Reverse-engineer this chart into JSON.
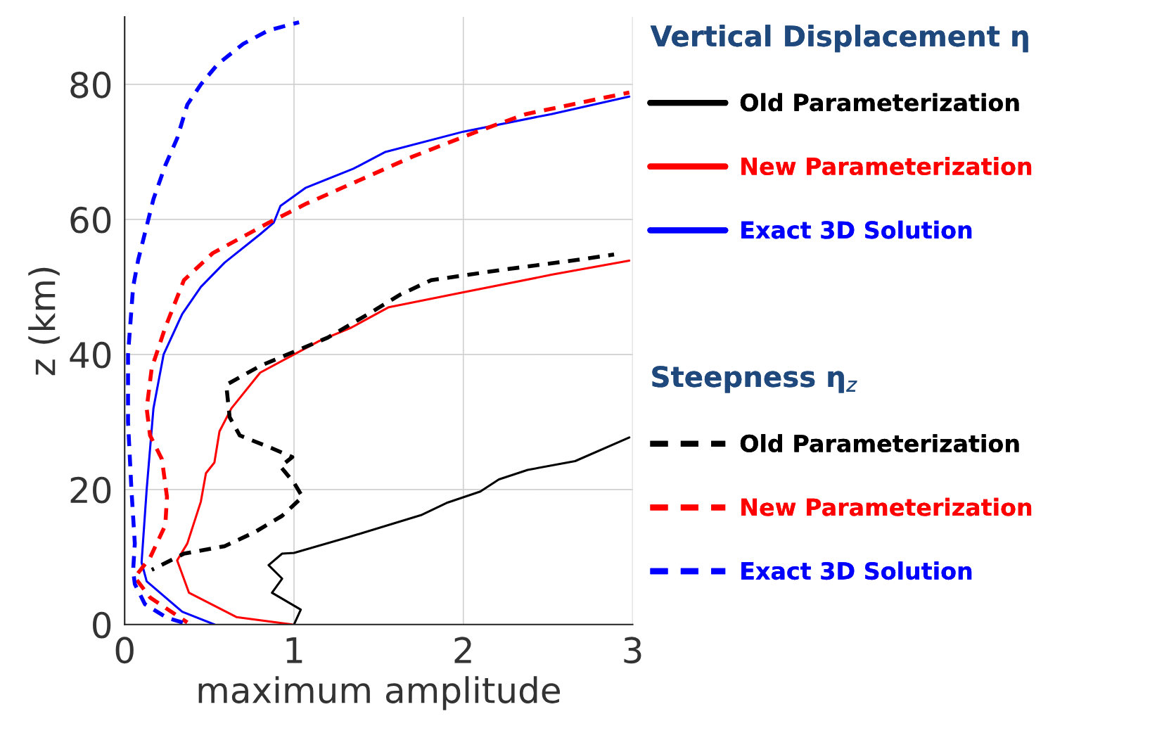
{
  "chart_data": {
    "type": "line",
    "xlabel": "maximum amplitude",
    "ylabel": "z (km)",
    "xlim": [
      0,
      3
    ],
    "ylim": [
      0,
      90
    ],
    "xticks": [
      0,
      1,
      2,
      3
    ],
    "yticks": [
      0,
      20,
      40,
      60,
      80
    ],
    "grid": true,
    "legend": "right",
    "annotations": [
      "Vertical Displacement η",
      "Steepness η$_{z}$"
    ],
    "series": [
      {
        "name": "Old Parameterization",
        "color": "#000000",
        "line_style": "solid",
        "x": [
          1.0,
          1.04,
          0.87,
          0.93,
          0.85,
          0.93,
          1.0,
          1.33,
          1.75,
          1.9,
          2.1,
          2.21,
          2.38,
          2.66,
          2.98
        ],
        "values": [
          0,
          2.2,
          4.7,
          6.8,
          8.8,
          10.5,
          10.6,
          13,
          16.2,
          18,
          19.7,
          21.5,
          22.9,
          24.2,
          27.7
        ]
      },
      {
        "name": "New Parameterization",
        "color": "#ff0000",
        "line_style": "solid",
        "x": [
          0.99,
          0.66,
          0.38,
          0.31,
          0.37,
          0.45,
          0.48,
          0.53,
          0.56,
          0.63,
          0.8,
          1.0,
          1.15,
          1.34,
          1.56,
          2.0,
          2.52,
          2.98
        ],
        "values": [
          0,
          1.1,
          4.7,
          9.5,
          12,
          18.2,
          22.4,
          24,
          28.6,
          32,
          37.3,
          40,
          42,
          44,
          47,
          49.2,
          51.8,
          53.9
        ]
      },
      {
        "name": "Exact 3D Solution",
        "color": "#0000ff",
        "line_style": "solid",
        "x": [
          0.53,
          0.34,
          0.13,
          0.1,
          0.13,
          0.17,
          0.23,
          0.34,
          0.45,
          0.59,
          0.8,
          0.88,
          0.92,
          1.07,
          1.35,
          1.54,
          2.0,
          2.52,
          2.98
        ],
        "values": [
          0,
          1.9,
          6.4,
          9.2,
          20,
          32,
          40,
          46,
          50,
          53.6,
          57.8,
          59.5,
          62,
          64.7,
          67.5,
          70,
          73,
          75.6,
          78.2
        ]
      },
      {
        "name": "Old Parameterization",
        "color": "#000000",
        "line_style": "dashed",
        "x": [
          0.16,
          0.35,
          0.59,
          0.77,
          0.93,
          1.05,
          1.0,
          0.92,
          0.99,
          0.87,
          0.68,
          0.62,
          0.6,
          0.8,
          1.0,
          1.2,
          1.46,
          1.63,
          1.81,
          2.22,
          2.67,
          2.89
        ],
        "values": [
          8.1,
          10.5,
          11.6,
          13.7,
          16.1,
          18.9,
          21,
          23.4,
          24.8,
          26.1,
          28,
          30.7,
          35.5,
          38.3,
          40.4,
          42.5,
          46.3,
          48.9,
          51,
          52.5,
          54,
          54.8
        ]
      },
      {
        "name": "New Parameterization",
        "color": "#ff0000",
        "line_style": "dashed",
        "x": [
          0.37,
          0.15,
          0.06,
          0.15,
          0.24,
          0.25,
          0.22,
          0.15,
          0.13,
          0.16,
          0.24,
          0.35,
          0.52,
          0.85,
          1.07,
          1.35,
          1.7,
          2.08,
          2.37,
          2.98
        ],
        "values": [
          0.3,
          4,
          7,
          9.9,
          14.7,
          18.9,
          24.5,
          28,
          32,
          38,
          44,
          51,
          55,
          59.5,
          62.3,
          65.4,
          69.3,
          73,
          75.6,
          78.8
        ]
      },
      {
        "name": "Exact 3D Solution",
        "color": "#0000ff",
        "line_style": "dashed",
        "x": [
          0.38,
          0.25,
          0.12,
          0.06,
          0.05,
          0.06,
          0.04,
          0.02,
          0.02,
          0.05,
          0.08,
          0.17,
          0.24,
          0.31,
          0.37,
          0.45,
          0.55,
          0.7,
          0.85,
          1.03
        ],
        "values": [
          0,
          1,
          3,
          6,
          8,
          12,
          20,
          30,
          40,
          50,
          54,
          63,
          68,
          72,
          77,
          80,
          83,
          86,
          88,
          89.2
        ]
      }
    ]
  }
}
